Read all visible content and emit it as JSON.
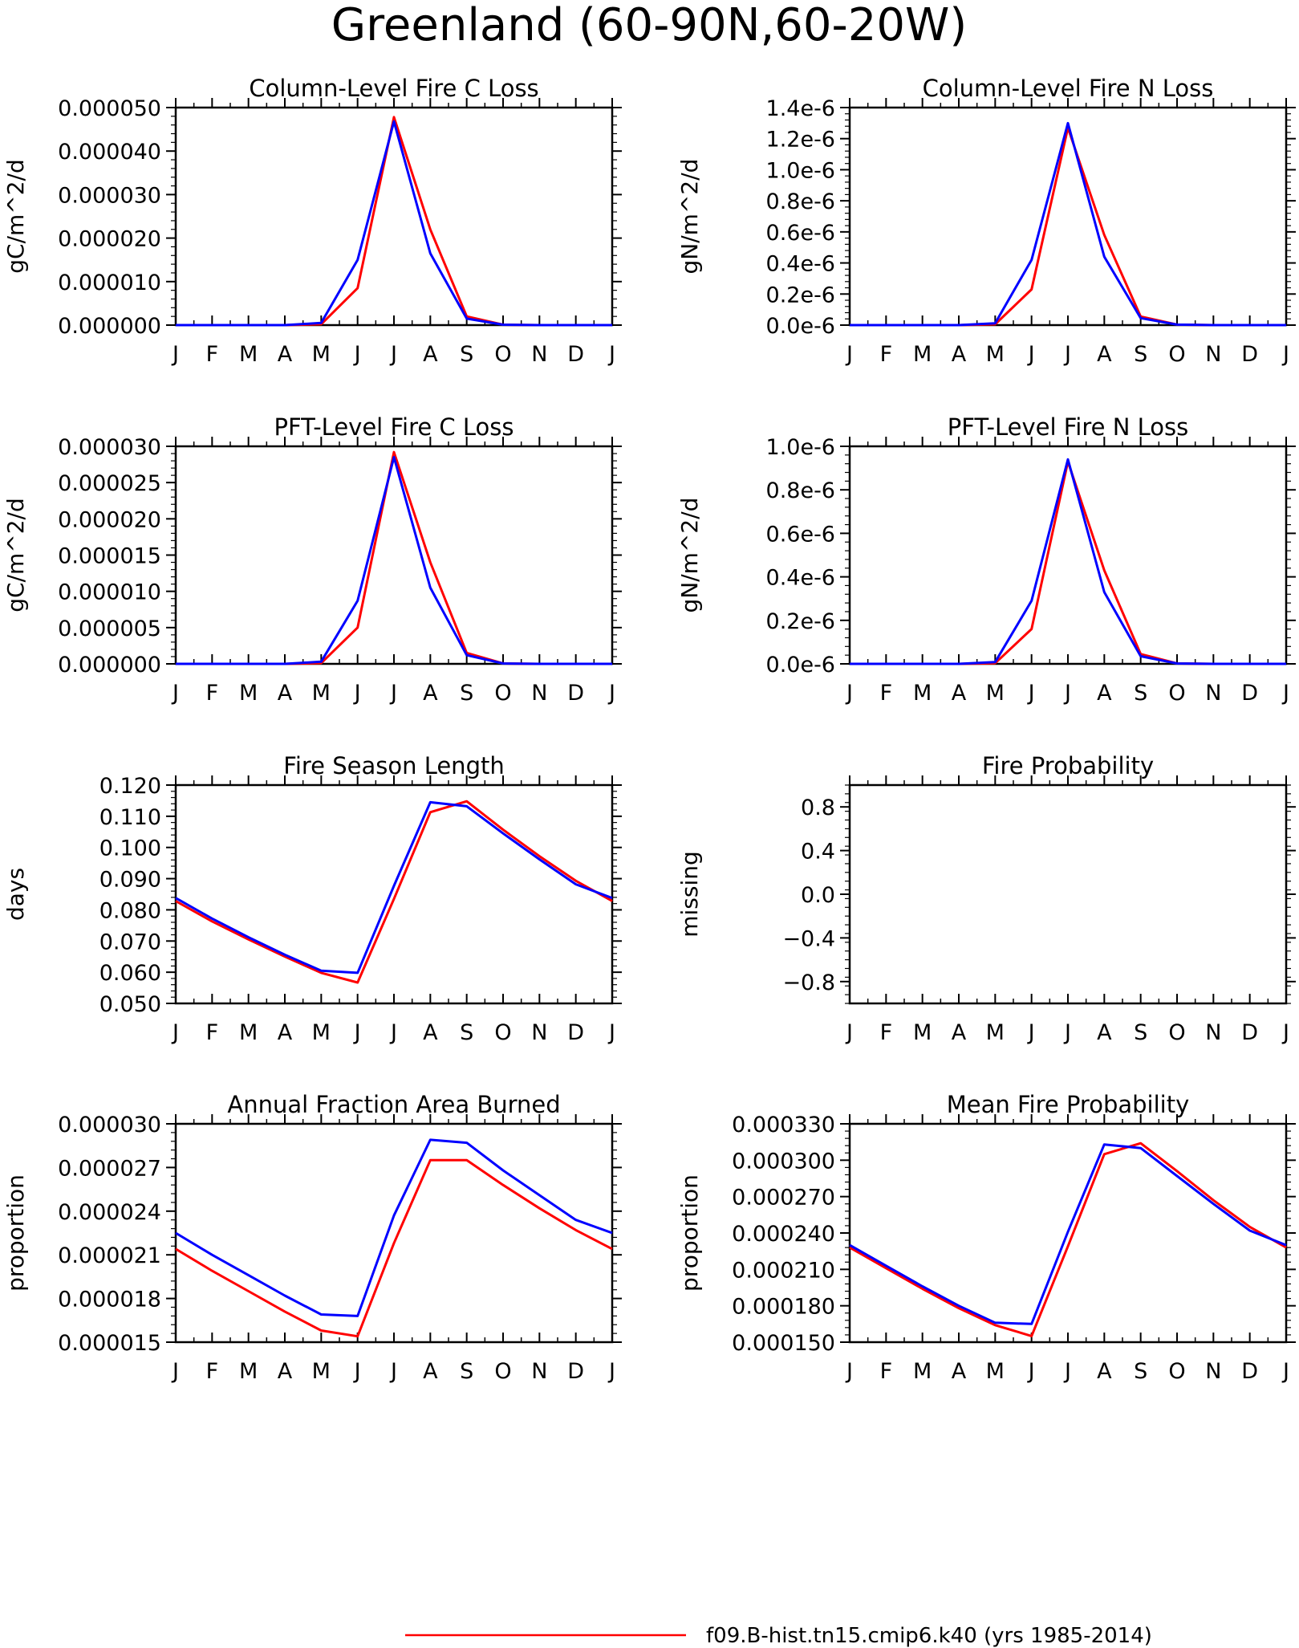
{
  "page_title": "Greenland (60-90N,60-20W)",
  "legend": {
    "entries": [
      {
        "label": "f09.B-hist.tn15.cmip6.k40 (yrs 1985-2014)",
        "color": "#ff0000"
      }
    ]
  },
  "colors": {
    "series_red": "#ff0000",
    "series_blue": "#0000ff",
    "axis": "#000000"
  },
  "chart_data": [
    {
      "type": "line",
      "title": "Column-Level Fire C Loss",
      "ylabel": "gC/m^2/d",
      "xlabel": "",
      "categories": [
        "J",
        "F",
        "M",
        "A",
        "M",
        "J",
        "J",
        "A",
        "S",
        "O",
        "N",
        "D",
        "J"
      ],
      "ylim": [
        0,
        5e-05
      ],
      "yticks": [
        0,
        1e-05,
        2e-05,
        3e-05,
        4e-05,
        5e-05
      ],
      "ytick_labels": [
        "0.000000",
        "0.000010",
        "0.000020",
        "0.000030",
        "0.000040",
        "0.000050"
      ],
      "series": [
        {
          "color": "#ff0000",
          "values": [
            0,
            0,
            0,
            0,
            2e-07,
            8.5e-06,
            4.78e-05,
            2.2e-05,
            2e-06,
            1e-07,
            0,
            0,
            0
          ]
        },
        {
          "color": "#0000ff",
          "values": [
            0,
            0,
            0,
            0,
            5e-07,
            1.5e-05,
            4.68e-05,
            1.65e-05,
            1.5e-06,
            1e-07,
            0,
            0,
            0
          ]
        }
      ]
    },
    {
      "type": "line",
      "title": "Column-Level Fire N Loss",
      "ylabel": "gN/m^2/d",
      "xlabel": "",
      "categories": [
        "J",
        "F",
        "M",
        "A",
        "M",
        "J",
        "J",
        "A",
        "S",
        "O",
        "N",
        "D",
        "J"
      ],
      "ylim": [
        0,
        1.4e-06
      ],
      "yticks": [
        0,
        2e-07,
        4e-07,
        6e-07,
        8e-07,
        1e-06,
        1.2e-06,
        1.4e-06
      ],
      "ytick_labels": [
        "0.0e-6",
        "0.2e-6",
        "0.4e-6",
        "0.6e-6",
        "0.8e-6",
        "1.0e-6",
        "1.2e-6",
        "1.4e-6"
      ],
      "series": [
        {
          "color": "#ff0000",
          "values": [
            0,
            0,
            0,
            0,
            5e-09,
            2.3e-07,
            1.27e-06,
            5.8e-07,
            5.5e-08,
            3e-09,
            0,
            0,
            0
          ]
        },
        {
          "color": "#0000ff",
          "values": [
            0,
            0,
            0,
            0,
            1.2e-08,
            4.2e-07,
            1.3e-06,
            4.4e-07,
            4.5e-08,
            3e-09,
            0,
            0,
            0
          ]
        }
      ]
    },
    {
      "type": "line",
      "title": "PFT-Level Fire C Loss",
      "ylabel": "gC/m^2/d",
      "xlabel": "",
      "categories": [
        "J",
        "F",
        "M",
        "A",
        "M",
        "J",
        "J",
        "A",
        "S",
        "O",
        "N",
        "D",
        "J"
      ],
      "ylim": [
        0,
        3e-05
      ],
      "yticks": [
        0,
        5e-06,
        1e-05,
        1.5e-05,
        2e-05,
        2.5e-05,
        3e-05
      ],
      "ytick_labels": [
        "0.000000",
        "0.000005",
        "0.000010",
        "0.000015",
        "0.000020",
        "0.000025",
        "0.000030"
      ],
      "series": [
        {
          "color": "#ff0000",
          "values": [
            0,
            0,
            0,
            0,
            1e-07,
            5e-06,
            2.92e-05,
            1.4e-05,
            1.5e-06,
            5e-08,
            0,
            0,
            0
          ]
        },
        {
          "color": "#0000ff",
          "values": [
            0,
            0,
            0,
            0,
            3e-07,
            8.7e-06,
            2.85e-05,
            1.05e-05,
            1.2e-06,
            5e-08,
            0,
            0,
            0
          ]
        }
      ]
    },
    {
      "type": "line",
      "title": "PFT-Level Fire N Loss",
      "ylabel": "gN/m^2/d",
      "xlabel": "",
      "categories": [
        "J",
        "F",
        "M",
        "A",
        "M",
        "J",
        "J",
        "A",
        "S",
        "O",
        "N",
        "D",
        "J"
      ],
      "ylim": [
        0,
        1e-06
      ],
      "yticks": [
        0,
        2e-07,
        4e-07,
        6e-07,
        8e-07,
        1e-06
      ],
      "ytick_labels": [
        "0.0e-6",
        "0.2e-6",
        "0.4e-6",
        "0.6e-6",
        "0.8e-6",
        "1.0e-6"
      ],
      "series": [
        {
          "color": "#ff0000",
          "values": [
            0,
            0,
            0,
            0,
            3e-09,
            1.6e-07,
            9.3e-07,
            4.3e-07,
            4.5e-08,
            2e-09,
            0,
            0,
            0
          ]
        },
        {
          "color": "#0000ff",
          "values": [
            0,
            0,
            0,
            0,
            8e-09,
            2.9e-07,
            9.4e-07,
            3.3e-07,
            3.5e-08,
            2e-09,
            0,
            0,
            0
          ]
        }
      ]
    },
    {
      "type": "line",
      "title": "Fire Season Length",
      "ylabel": "days",
      "xlabel": "",
      "categories": [
        "J",
        "F",
        "M",
        "A",
        "M",
        "J",
        "J",
        "A",
        "S",
        "O",
        "N",
        "D",
        "J"
      ],
      "ylim": [
        0.05,
        0.12
      ],
      "yticks": [
        0.05,
        0.06,
        0.07,
        0.08,
        0.09,
        0.1,
        0.11,
        0.12
      ],
      "ytick_labels": [
        "0.050",
        "0.060",
        "0.070",
        "0.080",
        "0.090",
        "0.100",
        "0.110",
        "0.120"
      ],
      "series": [
        {
          "color": "#ff0000",
          "values": [
            0.0828,
            0.0763,
            0.0705,
            0.065,
            0.0598,
            0.0567,
            0.0835,
            0.1113,
            0.1148,
            0.1057,
            0.0972,
            0.0893,
            0.0828
          ]
        },
        {
          "color": "#0000ff",
          "values": [
            0.0838,
            0.0772,
            0.0712,
            0.0656,
            0.0605,
            0.0598,
            0.0877,
            0.1145,
            0.1132,
            0.1045,
            0.0962,
            0.0882,
            0.0838
          ]
        }
      ]
    },
    {
      "type": "line",
      "title": "Fire Probability",
      "ylabel": "missing",
      "xlabel": "",
      "categories": [
        "J",
        "F",
        "M",
        "A",
        "M",
        "J",
        "J",
        "A",
        "S",
        "O",
        "N",
        "D",
        "J"
      ],
      "ylim": [
        -1,
        1
      ],
      "yticks": [
        -0.8,
        -0.4,
        0,
        0.4,
        0.8
      ],
      "ytick_labels": [
        "−0.8",
        "−0.4",
        "0.0",
        "0.4",
        "0.8"
      ],
      "series": []
    },
    {
      "type": "line",
      "title": "Annual Fraction Area Burned",
      "ylabel": "proportion",
      "xlabel": "",
      "categories": [
        "J",
        "F",
        "M",
        "A",
        "M",
        "J",
        "J",
        "A",
        "S",
        "O",
        "N",
        "D",
        "J"
      ],
      "ylim": [
        1.5e-05,
        3e-05
      ],
      "yticks": [
        1.5e-05,
        1.8e-05,
        2.1e-05,
        2.4e-05,
        2.7e-05,
        3e-05
      ],
      "ytick_labels": [
        "0.000015",
        "0.000018",
        "0.000021",
        "0.000024",
        "0.000027",
        "0.000030"
      ],
      "series": [
        {
          "color": "#ff0000",
          "values": [
            2.14e-05,
            1.99e-05,
            1.85e-05,
            1.71e-05,
            1.58e-05,
            1.54e-05,
            2.18e-05,
            2.75e-05,
            2.75e-05,
            2.58e-05,
            2.42e-05,
            2.27e-05,
            2.14e-05
          ]
        },
        {
          "color": "#0000ff",
          "values": [
            2.25e-05,
            2.1e-05,
            1.96e-05,
            1.82e-05,
            1.69e-05,
            1.68e-05,
            2.37e-05,
            2.89e-05,
            2.87e-05,
            2.68e-05,
            2.51e-05,
            2.34e-05,
            2.25e-05
          ]
        }
      ]
    },
    {
      "type": "line",
      "title": "Mean Fire Probability",
      "ylabel": "proportion",
      "xlabel": "",
      "categories": [
        "J",
        "F",
        "M",
        "A",
        "M",
        "J",
        "J",
        "A",
        "S",
        "O",
        "N",
        "D",
        "J"
      ],
      "ylim": [
        0.00015,
        0.00033
      ],
      "yticks": [
        0.00015,
        0.00018,
        0.00021,
        0.00024,
        0.00027,
        0.0003,
        0.00033
      ],
      "ytick_labels": [
        "0.000150",
        "0.000180",
        "0.000210",
        "0.000240",
        "0.000270",
        "0.000300",
        "0.000330"
      ],
      "series": [
        {
          "color": "#ff0000",
          "values": [
            0.000228,
            0.000211,
            0.000194,
            0.000178,
            0.000164,
            0.000155,
            0.000229,
            0.000305,
            0.000314,
            0.000291,
            0.000267,
            0.000245,
            0.000228
          ]
        },
        {
          "color": "#0000ff",
          "values": [
            0.00023,
            0.000213,
            0.000196,
            0.00018,
            0.000166,
            0.000165,
            0.000241,
            0.000313,
            0.00031,
            0.000287,
            0.000264,
            0.000242,
            0.00023
          ]
        }
      ]
    }
  ]
}
